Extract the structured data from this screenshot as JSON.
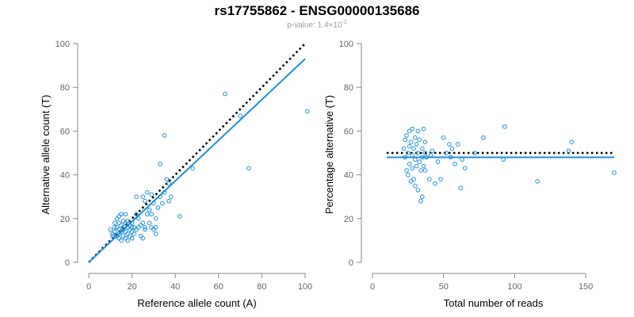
{
  "title": "rs17755862 - ENSG00000135686",
  "subtitle": {
    "prefix": "p-value: 1.4×10",
    "exponent": "-2"
  },
  "colors": {
    "points": "#1f8fd6",
    "fit": "#1f8fd6",
    "reference": "#000000",
    "axis": "#888888",
    "tick_text": "#666666"
  },
  "chart_data": [
    {
      "type": "scatter",
      "name": "left",
      "xlabel": "Reference allele count (A)",
      "ylabel": "Alternative allele count (T)",
      "xlim": [
        0,
        100
      ],
      "ylim": [
        0,
        100
      ],
      "xticks": [
        0,
        20,
        40,
        60,
        80,
        100
      ],
      "yticks": [
        0,
        20,
        40,
        60,
        80,
        100
      ],
      "reference_line": {
        "style": "dotted",
        "points": [
          [
            0,
            0
          ],
          [
            100,
            100
          ]
        ]
      },
      "fit_line": {
        "style": "solid",
        "points": [
          [
            0,
            0
          ],
          [
            100,
            93
          ]
        ]
      },
      "points": [
        [
          10,
          15
        ],
        [
          11,
          13
        ],
        [
          11,
          12
        ],
        [
          12,
          18
        ],
        [
          12,
          14
        ],
        [
          13,
          16
        ],
        [
          13,
          12
        ],
        [
          13,
          20
        ],
        [
          14,
          15
        ],
        [
          14,
          13
        ],
        [
          14,
          11
        ],
        [
          15,
          17
        ],
        [
          15,
          22
        ],
        [
          15,
          14
        ],
        [
          15,
          10
        ],
        [
          16,
          19
        ],
        [
          16,
          16
        ],
        [
          16,
          12
        ],
        [
          17,
          14
        ],
        [
          17,
          22
        ],
        [
          17,
          18
        ],
        [
          17,
          11
        ],
        [
          18,
          16
        ],
        [
          18,
          13
        ],
        [
          18,
          10
        ],
        [
          19,
          17
        ],
        [
          19,
          15
        ],
        [
          19,
          12
        ],
        [
          20,
          14
        ],
        [
          20,
          18
        ],
        [
          20,
          11
        ],
        [
          21,
          16
        ],
        [
          21,
          13
        ],
        [
          22,
          30
        ],
        [
          22,
          22
        ],
        [
          22,
          15
        ],
        [
          23,
          20
        ],
        [
          24,
          17
        ],
        [
          24,
          12
        ],
        [
          25,
          30
        ],
        [
          25,
          18
        ],
        [
          25,
          11
        ],
        [
          26,
          28
        ],
        [
          26,
          15
        ],
        [
          27,
          32
        ],
        [
          27,
          22
        ],
        [
          28,
          24
        ],
        [
          28,
          18
        ],
        [
          29,
          31
        ],
        [
          29,
          16
        ],
        [
          30,
          27
        ],
        [
          30,
          15
        ],
        [
          31,
          20
        ],
        [
          31,
          13
        ],
        [
          32,
          25
        ],
        [
          33,
          45
        ],
        [
          33,
          30
        ],
        [
          34,
          27
        ],
        [
          35,
          58
        ],
        [
          35,
          32
        ],
        [
          36,
          38
        ],
        [
          37,
          36
        ],
        [
          37,
          28
        ],
        [
          38,
          30
        ],
        [
          42,
          21
        ],
        [
          48,
          43
        ],
        [
          63,
          77
        ],
        [
          70,
          67
        ],
        [
          74,
          43
        ],
        [
          101,
          69
        ],
        [
          12,
          16
        ],
        [
          14,
          21
        ],
        [
          16,
          15
        ],
        [
          18,
          19
        ],
        [
          20,
          16
        ],
        [
          23,
          16
        ],
        [
          26,
          16
        ],
        [
          29,
          22
        ],
        [
          31,
          16
        ],
        [
          14,
          18
        ]
      ]
    },
    {
      "type": "scatter",
      "name": "right",
      "xlabel": "Total number of reads",
      "ylabel": "Percentage alternative (T)",
      "xlim": [
        0,
        170
      ],
      "ylim": [
        0,
        100
      ],
      "xticks": [
        0,
        50,
        100,
        150
      ],
      "yticks": [
        0,
        20,
        40,
        60,
        80,
        100
      ],
      "reference_line": {
        "style": "dotted",
        "y": 50,
        "x_range": [
          10,
          170
        ]
      },
      "fit_line": {
        "style": "solid",
        "y": 48,
        "x_range": [
          10,
          170
        ]
      },
      "points": [
        [
          22,
          52
        ],
        [
          23,
          56
        ],
        [
          23,
          48
        ],
        [
          24,
          42
        ],
        [
          24,
          58
        ],
        [
          25,
          50
        ],
        [
          25,
          40
        ],
        [
          26,
          60
        ],
        [
          26,
          53
        ],
        [
          26,
          45
        ],
        [
          27,
          37
        ],
        [
          27,
          55
        ],
        [
          28,
          49
        ],
        [
          28,
          61
        ],
        [
          28,
          43
        ],
        [
          29,
          52
        ],
        [
          29,
          38
        ],
        [
          30,
          57
        ],
        [
          30,
          47
        ],
        [
          30,
          35
        ],
        [
          31,
          54
        ],
        [
          31,
          44
        ],
        [
          32,
          60
        ],
        [
          32,
          50
        ],
        [
          32,
          33
        ],
        [
          33,
          56
        ],
        [
          33,
          46
        ],
        [
          34,
          42
        ],
        [
          34,
          28
        ],
        [
          35,
          52
        ],
        [
          35,
          48
        ],
        [
          35,
          30
        ],
        [
          36,
          61
        ],
        [
          36,
          44
        ],
        [
          37,
          55
        ],
        [
          37,
          50
        ],
        [
          37,
          42
        ],
        [
          38,
          48
        ],
        [
          40,
          38
        ],
        [
          41,
          49
        ],
        [
          42,
          51
        ],
        [
          44,
          36
        ],
        [
          46,
          46
        ],
        [
          48,
          38
        ],
        [
          50,
          57
        ],
        [
          52,
          50
        ],
        [
          54,
          54
        ],
        [
          55,
          48
        ],
        [
          56,
          52
        ],
        [
          58,
          45
        ],
        [
          60,
          54
        ],
        [
          62,
          34
        ],
        [
          63,
          47
        ],
        [
          65,
          43
        ],
        [
          72,
          50
        ],
        [
          78,
          57
        ],
        [
          92,
          47
        ],
        [
          93,
          62
        ],
        [
          116,
          37
        ],
        [
          138,
          51
        ],
        [
          140,
          55
        ],
        [
          170,
          41
        ]
      ]
    }
  ]
}
